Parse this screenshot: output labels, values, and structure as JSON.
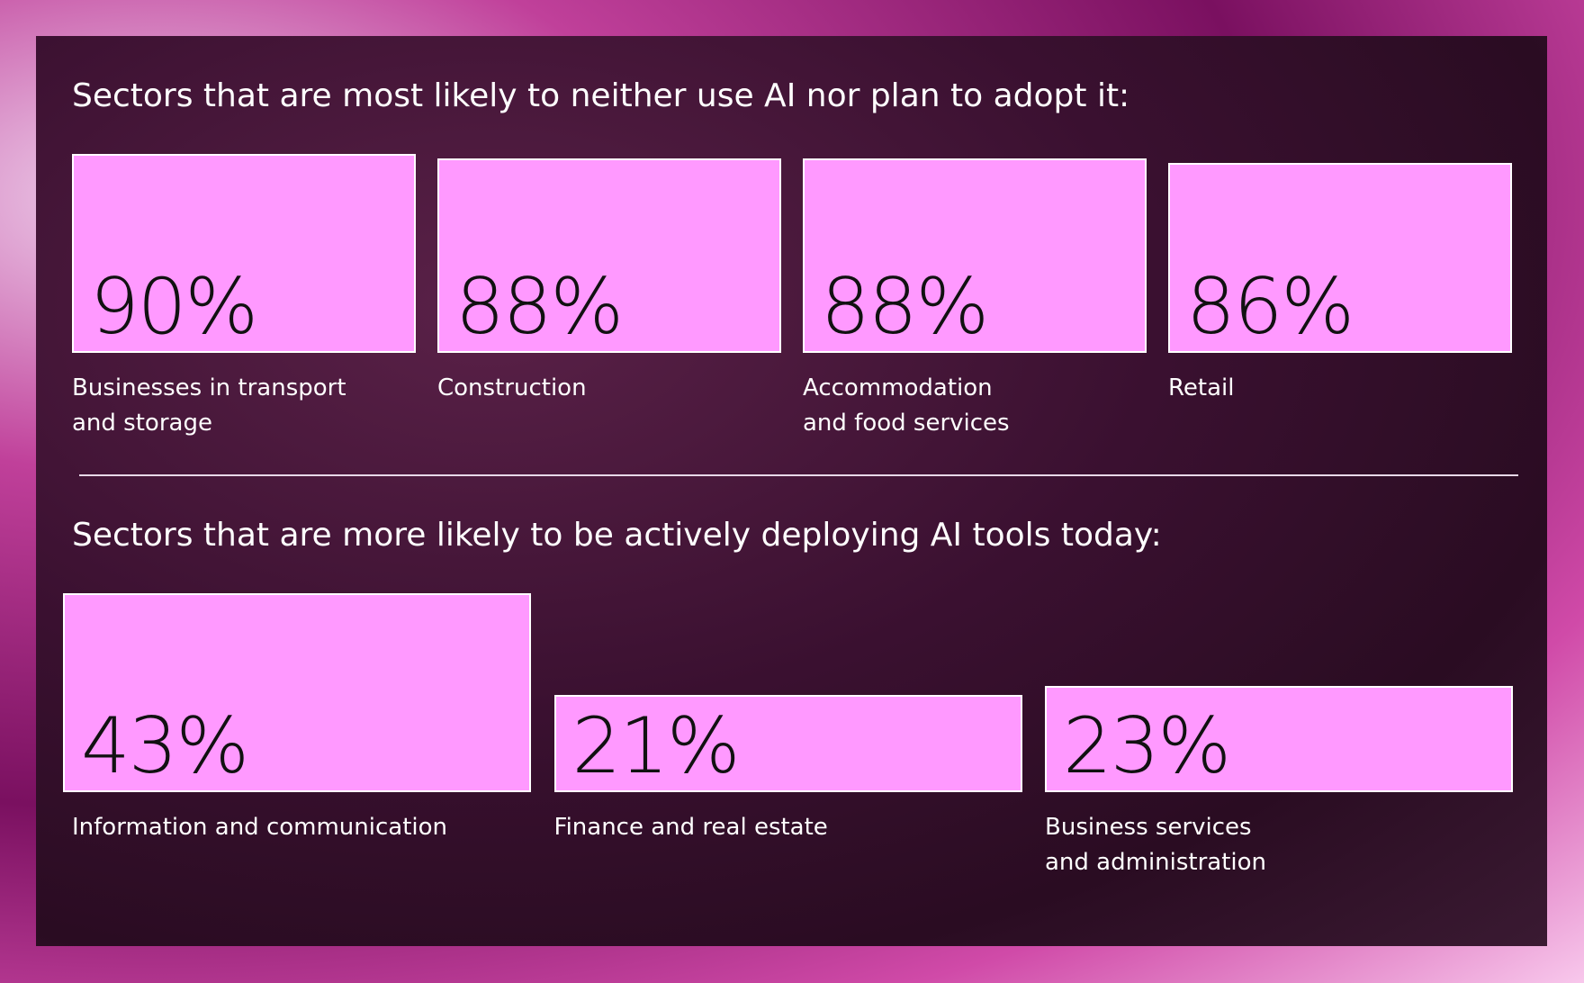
{
  "chart_data": [
    {
      "type": "bar",
      "title": "Sectors that are most likely to neither use AI nor plan to adopt it:",
      "categories": [
        "Businesses in transport\nand storage",
        "Construction",
        "Accommodation\nand food services",
        "Retail"
      ],
      "values": [
        90,
        88,
        88,
        86
      ],
      "value_labels": [
        "90%",
        "88%",
        "88%",
        "86%"
      ],
      "color": "#ff99ff"
    },
    {
      "type": "bar",
      "title": "Sectors that are more likely to be actively deploying AI tools today:",
      "categories": [
        "Information and communication",
        "Finance and real estate",
        "Business services\nand administration"
      ],
      "values": [
        43,
        21,
        23
      ],
      "value_labels": [
        "43%",
        "21%",
        "23%"
      ],
      "color": "#ff99ff"
    }
  ]
}
